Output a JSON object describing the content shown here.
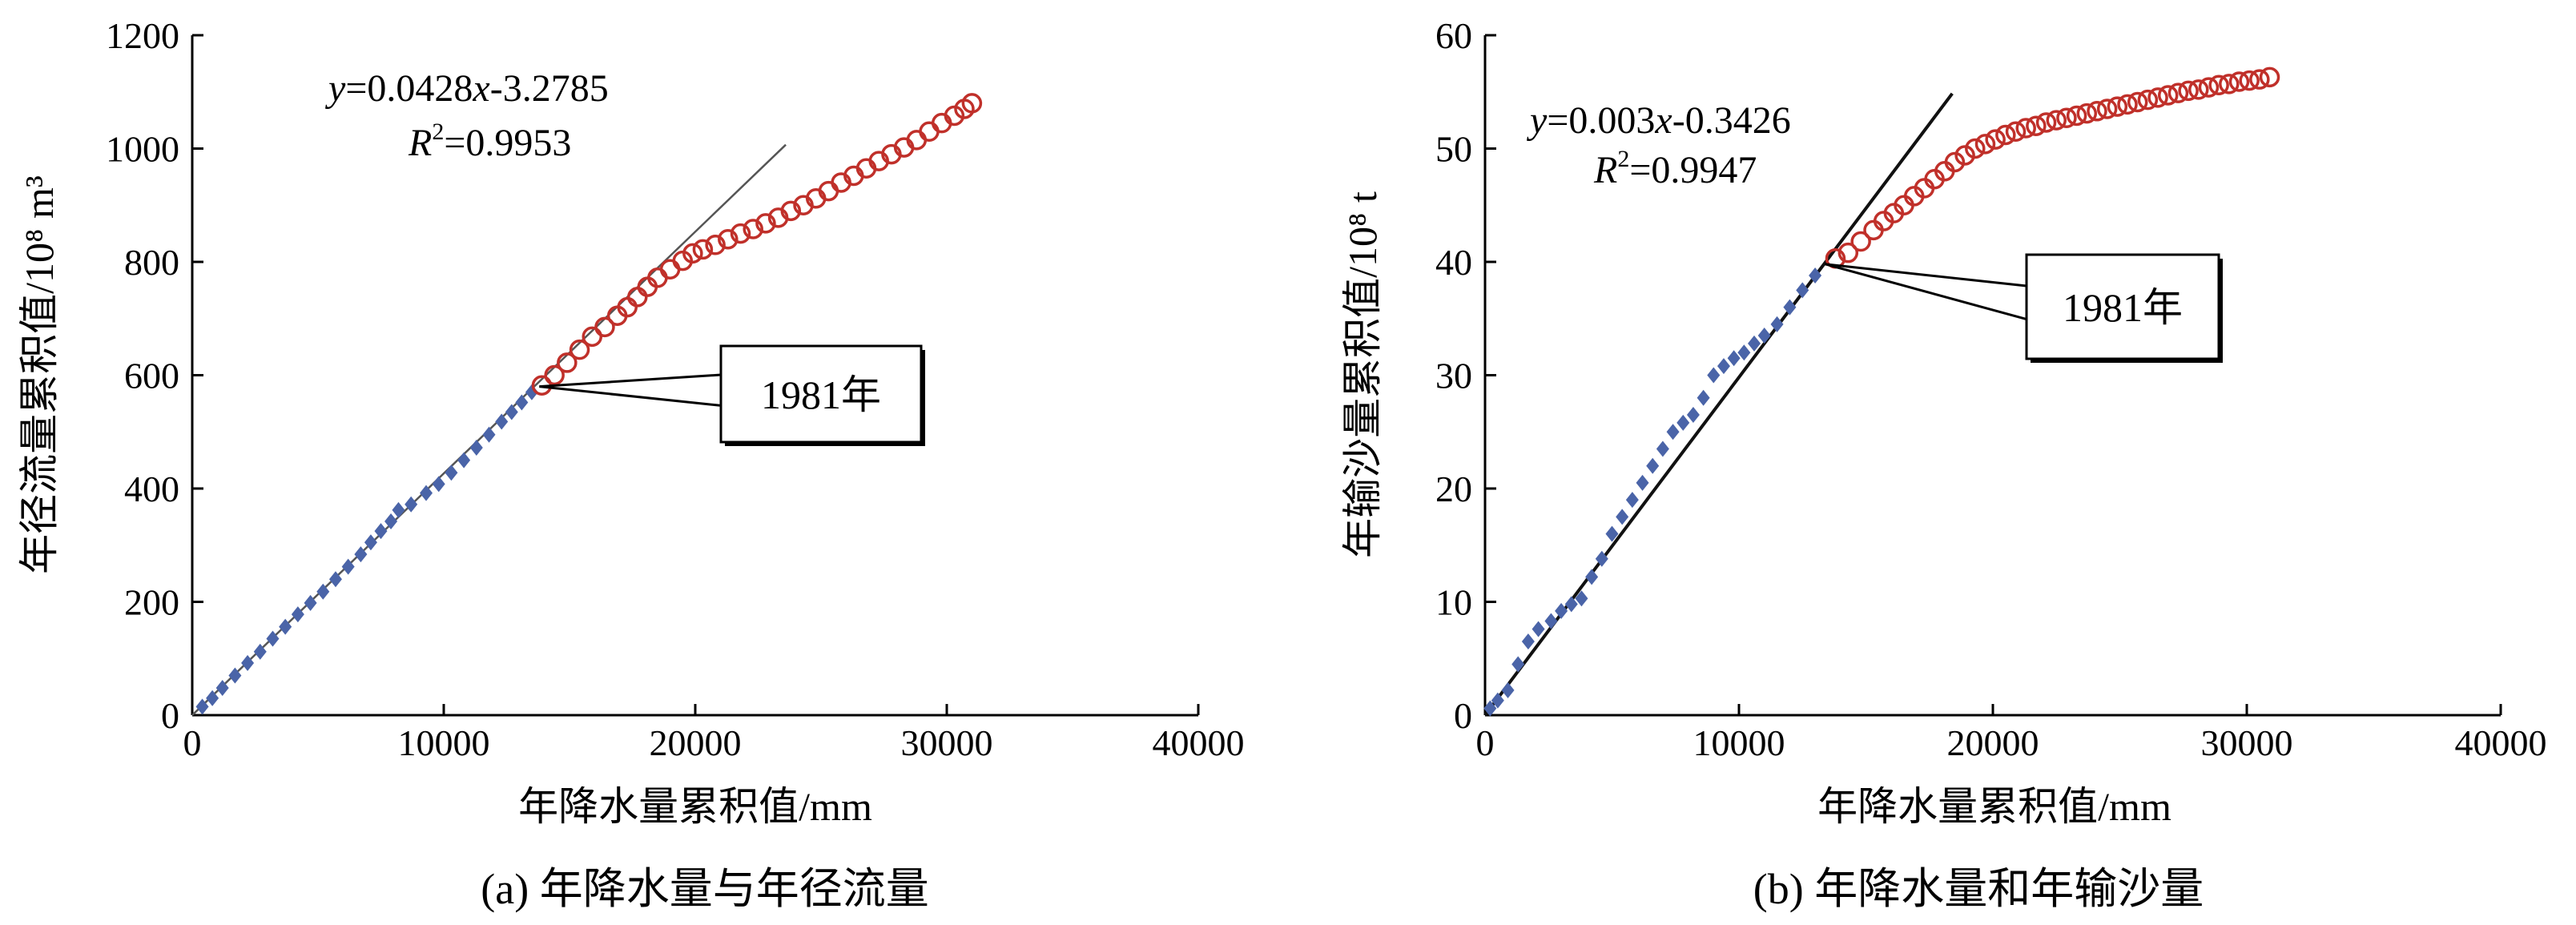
{
  "chart_data": [
    {
      "type": "scatter",
      "panel": "a",
      "caption": "(a) 年降水量与年径流量",
      "xlabel": "年降水量累积值/mm",
      "ylabel": "年径流量累积值/10⁸ m³",
      "xlim": [
        0,
        40000
      ],
      "ylim": [
        0,
        1200
      ],
      "xticks": [
        0,
        10000,
        20000,
        30000,
        40000
      ],
      "yticks": [
        0,
        200,
        400,
        600,
        800,
        1000,
        1200
      ],
      "grid": false,
      "equation": {
        "y": "y",
        "mid": "=0.0428",
        "x": "x",
        "rest": "-3.2785"
      },
      "r2": {
        "r": "R",
        "sup": "2",
        "rest": "=0.9953"
      },
      "fit_line": {
        "slope": 0.0428,
        "intercept": -3.2785,
        "x_range": [
          0,
          23600
        ]
      },
      "callout": {
        "label": "1981年",
        "point": [
          13800,
          580
        ]
      },
      "series": [
        {
          "marker": "diamond-filled",
          "color": "#4a64a8",
          "points": [
            [
              400,
              15
            ],
            [
              800,
              30
            ],
            [
              1200,
              48
            ],
            [
              1700,
              70
            ],
            [
              2200,
              92
            ],
            [
              2700,
              112
            ],
            [
              3200,
              135
            ],
            [
              3700,
              156
            ],
            [
              4200,
              178
            ],
            [
              4700,
              198
            ],
            [
              5200,
              218
            ],
            [
              5700,
              240
            ],
            [
              6200,
              262
            ],
            [
              6700,
              284
            ],
            [
              7100,
              305
            ],
            [
              7500,
              325
            ],
            [
              7900,
              342
            ],
            [
              8200,
              362
            ],
            [
              8700,
              372
            ],
            [
              9300,
              392
            ],
            [
              9800,
              408
            ],
            [
              10300,
              428
            ],
            [
              10800,
              450
            ],
            [
              11300,
              472
            ],
            [
              11800,
              495
            ],
            [
              12300,
              518
            ],
            [
              12700,
              535
            ],
            [
              13100,
              552
            ],
            [
              13500,
              570
            ]
          ]
        },
        {
          "marker": "circle-open",
          "color": "#c0302a",
          "points": [
            [
              13900,
              582
            ],
            [
              14400,
              600
            ],
            [
              14900,
              622
            ],
            [
              15400,
              645
            ],
            [
              15900,
              668
            ],
            [
              16400,
              685
            ],
            [
              16900,
              705
            ],
            [
              17300,
              720
            ],
            [
              17700,
              738
            ],
            [
              18100,
              756
            ],
            [
              18500,
              772
            ],
            [
              19000,
              787
            ],
            [
              19500,
              802
            ],
            [
              19900,
              815
            ],
            [
              20300,
              822
            ],
            [
              20800,
              830
            ],
            [
              21300,
              840
            ],
            [
              21800,
              850
            ],
            [
              22300,
              858
            ],
            [
              22800,
              868
            ],
            [
              23300,
              878
            ],
            [
              23800,
              890
            ],
            [
              24300,
              900
            ],
            [
              24800,
              912
            ],
            [
              25300,
              925
            ],
            [
              25800,
              940
            ],
            [
              26300,
              952
            ],
            [
              26800,
              965
            ],
            [
              27300,
              978
            ],
            [
              27800,
              990
            ],
            [
              28300,
              1002
            ],
            [
              28800,
              1015
            ],
            [
              29300,
              1030
            ],
            [
              29800,
              1045
            ],
            [
              30300,
              1058
            ],
            [
              30700,
              1070
            ],
            [
              31000,
              1080
            ]
          ]
        }
      ]
    },
    {
      "type": "scatter",
      "panel": "b",
      "caption": "(b) 年降水量和年输沙量",
      "xlabel": "年降水量累积值/mm",
      "ylabel": "年输沙量累积值/10⁸ t",
      "xlim": [
        0,
        40000
      ],
      "ylim": [
        0,
        60
      ],
      "xticks": [
        0,
        10000,
        20000,
        30000,
        40000
      ],
      "yticks": [
        0,
        10,
        20,
        30,
        40,
        50,
        60
      ],
      "grid": false,
      "equation": {
        "y": "y",
        "mid": "=0.003",
        "x": "x",
        "rest": "-0.3426"
      },
      "r2": {
        "r": "R",
        "sup": "2",
        "rest": "=0.9947"
      },
      "fit_line": {
        "slope": 0.003,
        "intercept": -0.3426,
        "x_range": [
          0,
          18400
        ]
      },
      "callout": {
        "label": "1981年",
        "point": [
          13400,
          39.8
        ]
      },
      "series": [
        {
          "marker": "diamond-filled",
          "color": "#4a64a8",
          "points": [
            [
              200,
              0.6
            ],
            [
              500,
              1.3
            ],
            [
              900,
              2.2
            ],
            [
              1300,
              4.5
            ],
            [
              1700,
              6.5
            ],
            [
              2100,
              7.6
            ],
            [
              2600,
              8.3
            ],
            [
              3000,
              9.2
            ],
            [
              3400,
              9.8
            ],
            [
              3800,
              10.3
            ],
            [
              4200,
              12.2
            ],
            [
              4600,
              13.8
            ],
            [
              5000,
              16.0
            ],
            [
              5400,
              17.5
            ],
            [
              5800,
              19.0
            ],
            [
              6200,
              20.5
            ],
            [
              6600,
              22.0
            ],
            [
              7000,
              23.5
            ],
            [
              7400,
              25.0
            ],
            [
              7800,
              25.8
            ],
            [
              8200,
              26.5
            ],
            [
              8600,
              28.0
            ],
            [
              9000,
              30.0
            ],
            [
              9400,
              30.8
            ],
            [
              9800,
              31.5
            ],
            [
              10200,
              32.0
            ],
            [
              10600,
              32.8
            ],
            [
              11000,
              33.5
            ],
            [
              11500,
              34.5
            ],
            [
              12000,
              36.0
            ],
            [
              12500,
              37.5
            ],
            [
              13000,
              38.8
            ]
          ]
        },
        {
          "marker": "circle-open",
          "color": "#c0302a",
          "points": [
            [
              13800,
              40.3
            ],
            [
              14300,
              40.8
            ],
            [
              14800,
              41.8
            ],
            [
              15300,
              42.8
            ],
            [
              15700,
              43.6
            ],
            [
              16100,
              44.3
            ],
            [
              16500,
              45.0
            ],
            [
              16900,
              45.8
            ],
            [
              17300,
              46.5
            ],
            [
              17700,
              47.3
            ],
            [
              18100,
              48.0
            ],
            [
              18500,
              48.8
            ],
            [
              18900,
              49.4
            ],
            [
              19300,
              50.0
            ],
            [
              19700,
              50.4
            ],
            [
              20100,
              50.8
            ],
            [
              20500,
              51.2
            ],
            [
              20900,
              51.5
            ],
            [
              21300,
              51.8
            ],
            [
              21700,
              52.0
            ],
            [
              22100,
              52.3
            ],
            [
              22500,
              52.5
            ],
            [
              22900,
              52.7
            ],
            [
              23300,
              52.9
            ],
            [
              23700,
              53.1
            ],
            [
              24100,
              53.3
            ],
            [
              24500,
              53.5
            ],
            [
              24900,
              53.7
            ],
            [
              25300,
              53.9
            ],
            [
              25700,
              54.1
            ],
            [
              26100,
              54.3
            ],
            [
              26500,
              54.5
            ],
            [
              26900,
              54.7
            ],
            [
              27300,
              54.9
            ],
            [
              27700,
              55.1
            ],
            [
              28100,
              55.2
            ],
            [
              28500,
              55.4
            ],
            [
              28900,
              55.6
            ],
            [
              29300,
              55.7
            ],
            [
              29700,
              55.9
            ],
            [
              30100,
              56.0
            ],
            [
              30500,
              56.1
            ],
            [
              30900,
              56.3
            ]
          ]
        }
      ]
    }
  ]
}
